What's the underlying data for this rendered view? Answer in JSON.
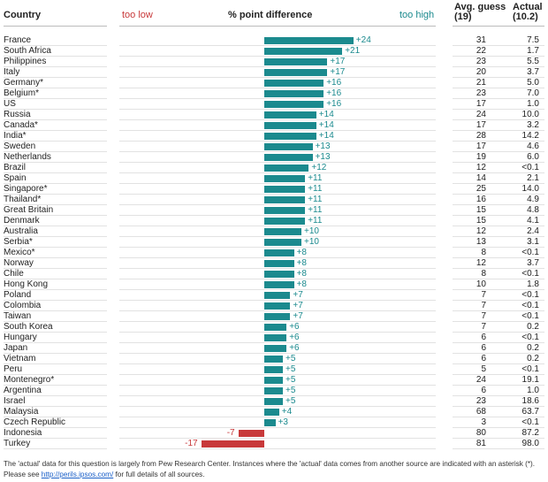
{
  "header": {
    "country": "Country",
    "too_low": "too low",
    "center": "% point difference",
    "too_high": "too high",
    "avg_guess": "Avg. guess",
    "avg_guess_sub": "(19)",
    "actual": "Actual",
    "actual_sub": "(10.2)"
  },
  "colors": {
    "positive": "#1b8a8e",
    "negative": "#c8393a"
  },
  "chart_data": {
    "type": "bar",
    "orientation": "horizontal",
    "title": "% point difference",
    "categories": [
      "France",
      "South Africa",
      "Philippines",
      "Italy",
      "Germany*",
      "Belgium*",
      "US",
      "Russia",
      "Canada*",
      "India*",
      "Sweden",
      "Netherlands",
      "Brazil",
      "Spain",
      "Singapore*",
      "Thailand*",
      "Great Britain",
      "Denmark",
      "Australia",
      "Serbia*",
      "Mexico*",
      "Norway",
      "Chile",
      "Hong Kong",
      "Poland",
      "Colombia",
      "Taiwan",
      "South Korea",
      "Hungary",
      "Japan",
      "Vietnam",
      "Peru",
      "Montenegro*",
      "Argentina",
      "Israel",
      "Malaysia",
      "Czech Republic",
      "Indonesia",
      "Turkey"
    ],
    "values": [
      24,
      21,
      17,
      17,
      16,
      16,
      16,
      14,
      14,
      14,
      13,
      13,
      12,
      11,
      11,
      11,
      11,
      11,
      10,
      10,
      8,
      8,
      8,
      8,
      7,
      7,
      7,
      6,
      6,
      6,
      5,
      5,
      5,
      5,
      5,
      4,
      3,
      -7,
      -17
    ],
    "value_labels": [
      "+24",
      "+21",
      "+17",
      "+17",
      "+16",
      "+16",
      "+16",
      "+14",
      "+14",
      "+14",
      "+13",
      "+13",
      "+12",
      "+11",
      "+11",
      "+11",
      "+11",
      "+11",
      "+10",
      "+10",
      "+8",
      "+8",
      "+8",
      "+8",
      "+7",
      "+7",
      "+7",
      "+6",
      "+6",
      "+6",
      "+5",
      "+5",
      "+5",
      "+5",
      "+5",
      "+4",
      "+3",
      "-7",
      "-17"
    ],
    "avg_guess": [
      "31",
      "22",
      "23",
      "20",
      "21",
      "23",
      "17",
      "24",
      "17",
      "28",
      "17",
      "19",
      "12",
      "14",
      "25",
      "16",
      "15",
      "15",
      "12",
      "13",
      "8",
      "12",
      "8",
      "10",
      "7",
      "7",
      "7",
      "7",
      "6",
      "6",
      "6",
      "5",
      "24",
      "6",
      "23",
      "68",
      "3",
      "80",
      "81"
    ],
    "actual": [
      "7.5",
      "1.7",
      "5.5",
      "3.7",
      "5.0",
      "7.0",
      "1.0",
      "10.0",
      "3.2",
      "14.2",
      "4.6",
      "6.0",
      "<0.1",
      "2.1",
      "14.0",
      "4.9",
      "4.8",
      "4.1",
      "2.4",
      "3.1",
      "<0.1",
      "3.7",
      "<0.1",
      "1.8",
      "<0.1",
      "<0.1",
      "<0.1",
      "0.2",
      "<0.1",
      "0.2",
      "0.2",
      "<0.1",
      "19.1",
      "1.0",
      "18.6",
      "63.7",
      "<0.1",
      "87.2",
      "98.0"
    ],
    "xlim": [
      -24,
      24
    ]
  },
  "footnote": {
    "line1": "The 'actual' data for this question is largely from Pew Research Center. Instances where the 'actual' data comes from another source are indicated with an asterisk (*).",
    "line2_pre": "Please see ",
    "link": "http://perils.ipsos.com/",
    "line2_post": " for full details of all sources."
  }
}
